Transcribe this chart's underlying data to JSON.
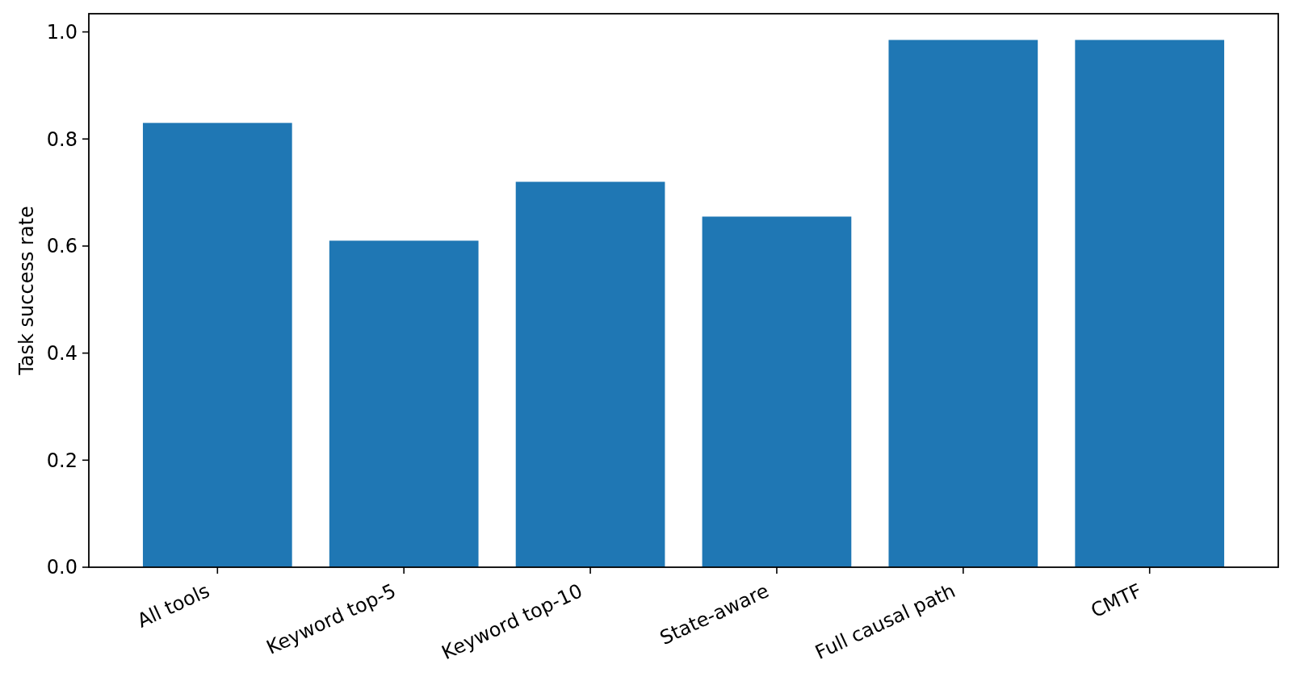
{
  "chart_data": {
    "type": "bar",
    "ylabel": "Task success rate",
    "categories": [
      "All tools",
      "Keyword top-5",
      "Keyword top-10",
      "State-aware",
      "Full causal path",
      "CMTF"
    ],
    "values": [
      0.83,
      0.61,
      0.72,
      0.655,
      0.985,
      0.985
    ],
    "color": "#1f77b4",
    "ylim": [
      0,
      1.034
    ],
    "yticks": [
      {
        "value": 0,
        "label": "0.0"
      },
      0.2,
      0.4,
      0.6,
      0.8,
      {
        "value": 1,
        "label": "1.0"
      }
    ],
    "grid": false
  }
}
